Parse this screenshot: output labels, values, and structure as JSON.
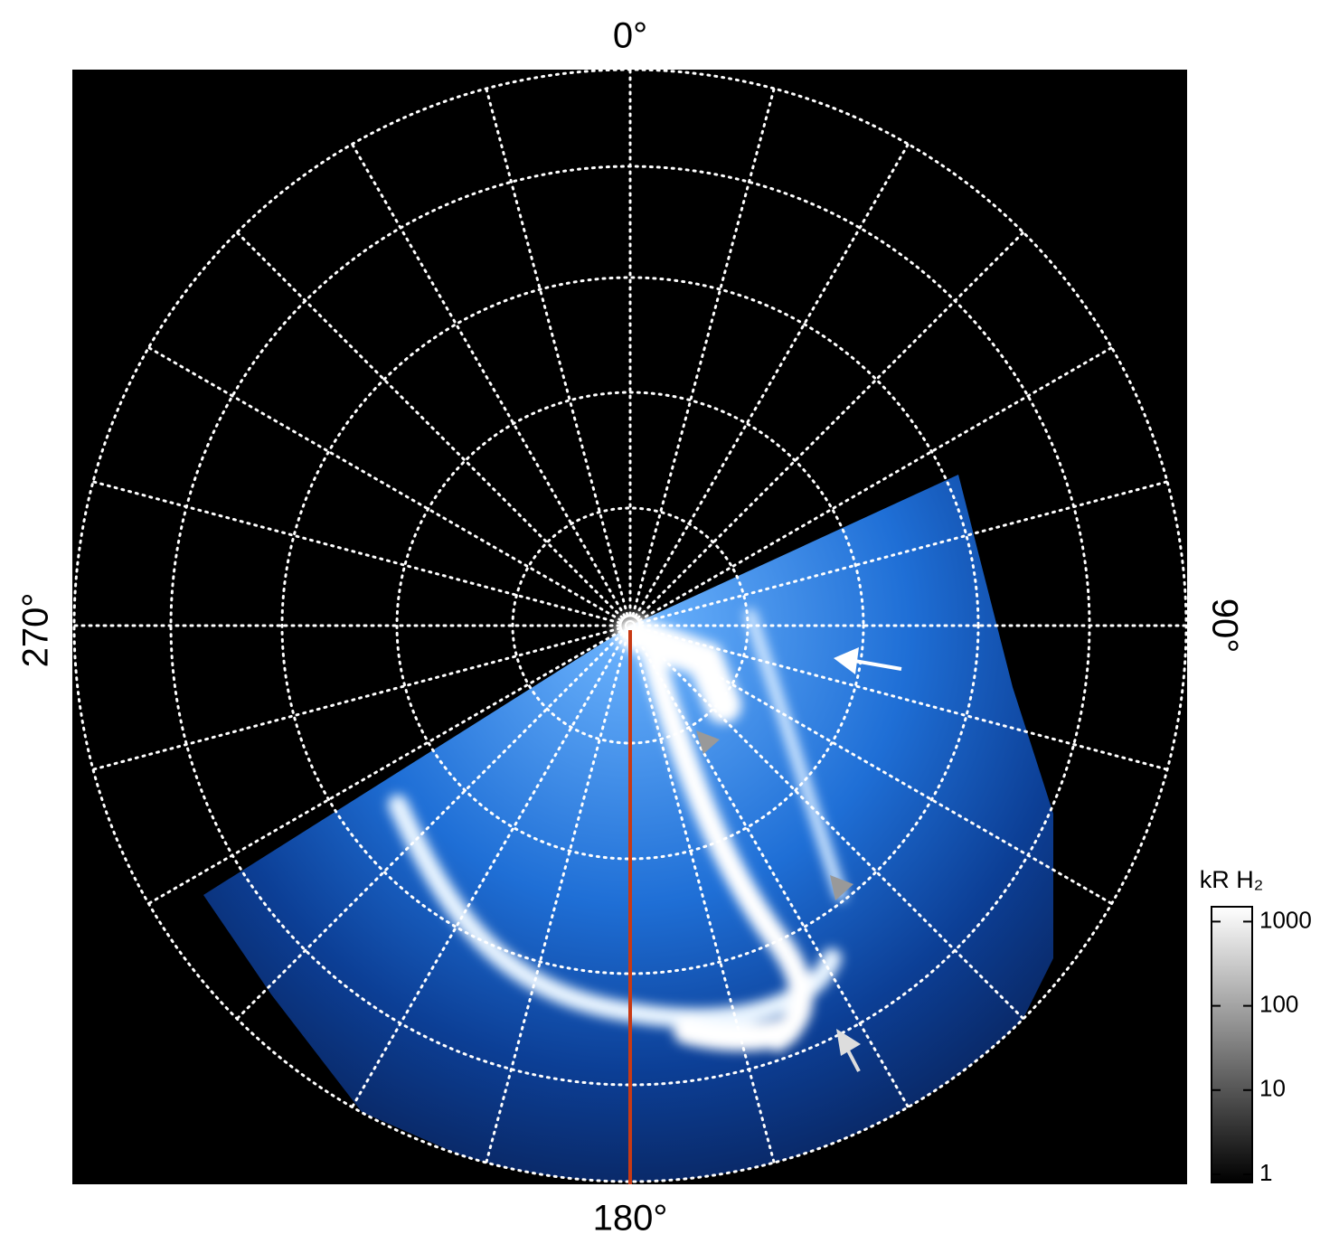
{
  "chart_data": {
    "type": "polar-image",
    "labels": {
      "top": "0°",
      "right": "90°",
      "bottom": "180°",
      "left": "270°"
    },
    "colorbar": {
      "label": "kR H₂",
      "scale": "log",
      "lim": [
        0.8,
        1500
      ],
      "ticks": [
        1,
        10,
        100,
        1000
      ]
    }
  }
}
